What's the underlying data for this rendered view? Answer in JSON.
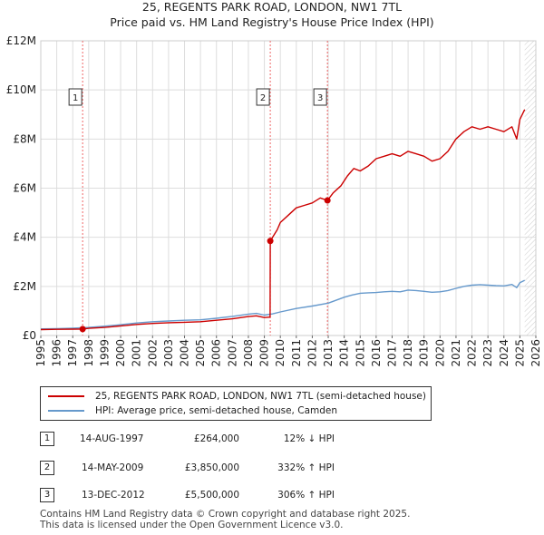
{
  "title_line1": "25, REGENTS PARK ROAD, LONDON, NW1 7TL",
  "title_line2": "Price paid vs. HM Land Registry's House Price Index (HPI)",
  "chart_data": {
    "type": "line",
    "xlim": [
      1995,
      2026
    ],
    "ylim": [
      0,
      12000000
    ],
    "x_ticks": [
      1995,
      1996,
      1997,
      1998,
      1999,
      2000,
      2001,
      2002,
      2003,
      2004,
      2005,
      2006,
      2007,
      2008,
      2009,
      2010,
      2011,
      2012,
      2013,
      2014,
      2015,
      2016,
      2017,
      2018,
      2019,
      2020,
      2021,
      2022,
      2023,
      2024,
      2025,
      2026
    ],
    "y_ticks": [
      {
        "value": 0,
        "label": "£0"
      },
      {
        "value": 2000000,
        "label": "£2M"
      },
      {
        "value": 4000000,
        "label": "£4M"
      },
      {
        "value": 6000000,
        "label": "£6M"
      },
      {
        "value": 8000000,
        "label": "£8M"
      },
      {
        "value": 10000000,
        "label": "£10M"
      },
      {
        "value": 12000000,
        "label": "£12M"
      }
    ],
    "grid": true,
    "series": [
      {
        "name": "25, REGENTS PARK ROAD, LONDON, NW1 7TL (semi-detached house)",
        "color": "#cc0000",
        "x": [
          1995.0,
          1996.0,
          1997.0,
          1997.62,
          1998.0,
          1999.0,
          2000.0,
          2001.0,
          2002.0,
          2003.0,
          2004.0,
          2005.0,
          2006.0,
          2007.0,
          2008.0,
          2008.5,
          2009.0,
          2009.36,
          2009.37,
          2009.8,
          2010.0,
          2010.5,
          2011.0,
          2011.5,
          2012.0,
          2012.5,
          2012.95,
          2013.3,
          2013.8,
          2014.2,
          2014.6,
          2015.0,
          2015.5,
          2016.0,
          2016.5,
          2017.0,
          2017.5,
          2018.0,
          2018.5,
          2019.0,
          2019.5,
          2020.0,
          2020.5,
          2021.0,
          2021.5,
          2022.0,
          2022.5,
          2023.0,
          2023.5,
          2024.0,
          2024.5,
          2024.8,
          2025.0,
          2025.3
        ],
        "y": [
          240000,
          250000,
          260000,
          264000,
          290000,
          330000,
          390000,
          450000,
          490000,
          520000,
          540000,
          560000,
          620000,
          680000,
          770000,
          800000,
          730000,
          750000,
          3850000,
          4300000,
          4600000,
          4900000,
          5200000,
          5300000,
          5400000,
          5600000,
          5500000,
          5800000,
          6100000,
          6500000,
          6800000,
          6700000,
          6900000,
          7200000,
          7300000,
          7400000,
          7300000,
          7500000,
          7400000,
          7300000,
          7100000,
          7200000,
          7500000,
          8000000,
          8300000,
          8500000,
          8400000,
          8500000,
          8400000,
          8300000,
          8500000,
          8000000,
          8800000,
          9200000
        ]
      },
      {
        "name": "HPI: Average price, semi-detached house, Camden",
        "color": "#6699cc",
        "x": [
          1995.0,
          1996.0,
          1997.0,
          1998.0,
          1999.0,
          2000.0,
          2001.0,
          2002.0,
          2003.0,
          2004.0,
          2005.0,
          2006.0,
          2007.0,
          2008.0,
          2008.5,
          2009.0,
          2009.5,
          2010.0,
          2011.0,
          2012.0,
          2013.0,
          2014.0,
          2014.5,
          2015.0,
          2015.5,
          2016.0,
          2016.5,
          2017.0,
          2017.5,
          2018.0,
          2018.5,
          2019.0,
          2019.5,
          2020.0,
          2020.5,
          2021.0,
          2021.5,
          2022.0,
          2022.5,
          2023.0,
          2023.5,
          2024.0,
          2024.5,
          2024.8,
          2025.0,
          2025.3
        ],
        "y": [
          270000,
          280000,
          300000,
          330000,
          380000,
          440000,
          510000,
          560000,
          590000,
          620000,
          640000,
          700000,
          780000,
          870000,
          900000,
          830000,
          880000,
          960000,
          1100000,
          1200000,
          1320000,
          1560000,
          1650000,
          1720000,
          1740000,
          1750000,
          1780000,
          1800000,
          1780000,
          1850000,
          1830000,
          1800000,
          1760000,
          1780000,
          1830000,
          1920000,
          2000000,
          2050000,
          2070000,
          2050000,
          2030000,
          2020000,
          2080000,
          1950000,
          2150000,
          2250000
        ]
      }
    ],
    "sales": [
      {
        "marker": "1",
        "x": 1997.62,
        "y": 264000
      },
      {
        "marker": "2",
        "x": 2009.37,
        "y": 3850000
      },
      {
        "marker": "3",
        "x": 2012.95,
        "y": 5500000
      }
    ],
    "hatched_from_x": 2025.3
  },
  "legend": {
    "property_label": "25, REGENTS PARK ROAD, LONDON, NW1 7TL (semi-detached house)",
    "hpi_label": "HPI: Average price, semi-detached house, Camden"
  },
  "transactions": [
    {
      "num": "1",
      "date": "14-AUG-1997",
      "price": "£264,000",
      "hpi": "12% ↓ HPI"
    },
    {
      "num": "2",
      "date": "14-MAY-2009",
      "price": "£3,850,000",
      "hpi": "332% ↑ HPI"
    },
    {
      "num": "3",
      "date": "13-DEC-2012",
      "price": "£5,500,000",
      "hpi": "306% ↑ HPI"
    }
  ],
  "footer": {
    "line1": "Contains HM Land Registry data © Crown copyright and database right 2025.",
    "line2": "This data is licensed under the Open Government Licence v3.0."
  }
}
